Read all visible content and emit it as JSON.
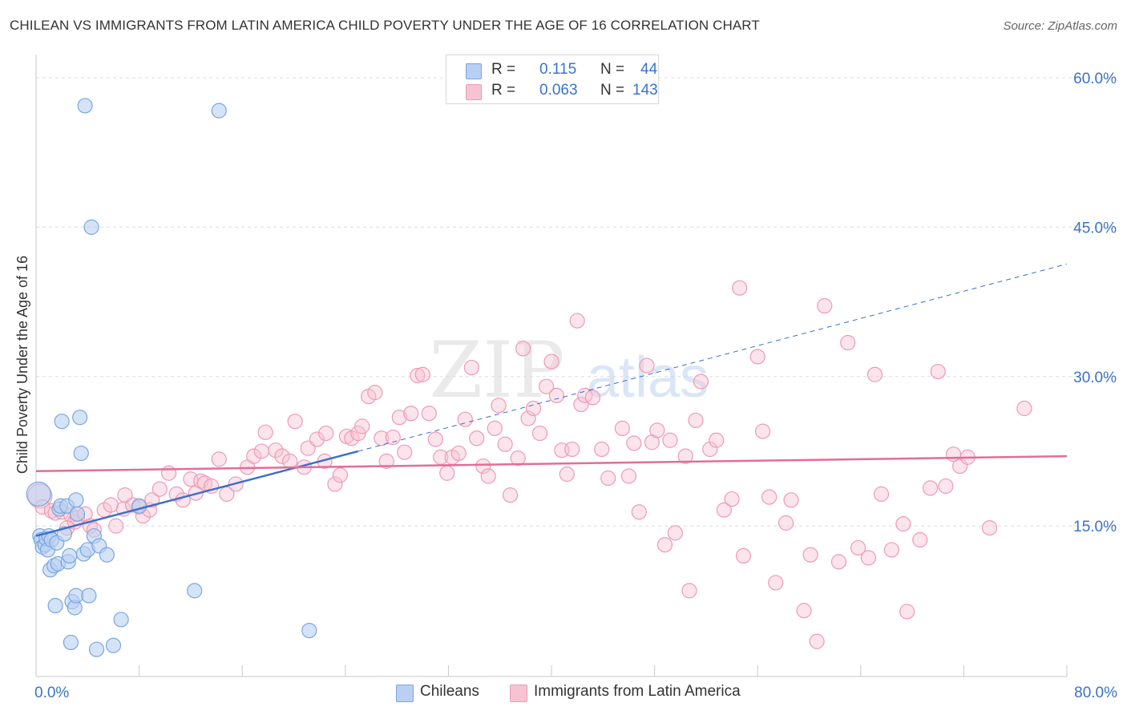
{
  "title": "CHILEAN VS IMMIGRANTS FROM LATIN AMERICA CHILD POVERTY UNDER THE AGE OF 16 CORRELATION CHART",
  "source": "Source: ZipAtlas.com",
  "watermark": {
    "zip": "ZIP",
    "atlas": "atlas"
  },
  "legend": {
    "chileans": {
      "r_label": "R =",
      "r_value": "0.115",
      "n_label": "N =",
      "n_value": "44"
    },
    "immigrants": {
      "r_label": "R =",
      "r_value": "0.063",
      "n_label": "N =",
      "n_value": "143"
    }
  },
  "bottom_legend": {
    "chileans": "Chileans",
    "immigrants": "Immigrants from Latin America"
  },
  "colors": {
    "chileans_fill": "#b9d0f2",
    "chileans_stroke": "#7aa6e0",
    "chileans_line": "#3a6fce",
    "immigrants_fill": "#f7c3d3",
    "immigrants_stroke": "#ee9ab5",
    "immigrants_line": "#e36d95",
    "axis_label": "#3a73c9",
    "grid": "#dcdcdc"
  },
  "chart_data": {
    "type": "scatter",
    "title": "CHILEAN VS IMMIGRANTS FROM LATIN AMERICA CHILD POVERTY UNDER THE AGE OF 16 CORRELATION CHART",
    "xlabel": "",
    "ylabel": "Child Poverty Under the Age of 16",
    "xlim": [
      0,
      80
    ],
    "ylim": [
      0,
      60
    ],
    "x_ticks": [
      0,
      80
    ],
    "x_tick_labels": [
      "0.0%",
      "80.0%"
    ],
    "y_ticks": [
      15,
      30,
      45,
      60
    ],
    "y_tick_labels": [
      "15.0%",
      "30.0%",
      "45.0%",
      "60.0%"
    ],
    "grid": true,
    "legend_position": "top-center",
    "series": [
      {
        "name": "Chileans",
        "points": [
          [
            0.2,
            18.2
          ],
          [
            0.3,
            14.0
          ],
          [
            0.4,
            13.6
          ],
          [
            0.5,
            12.9
          ],
          [
            0.7,
            13.1
          ],
          [
            0.8,
            13.7
          ],
          [
            0.9,
            12.6
          ],
          [
            1.0,
            14.0
          ],
          [
            1.1,
            10.6
          ],
          [
            1.2,
            13.6
          ],
          [
            1.4,
            11.0
          ],
          [
            1.5,
            7.0
          ],
          [
            1.6,
            13.3
          ],
          [
            1.7,
            11.2
          ],
          [
            1.8,
            16.7
          ],
          [
            1.9,
            17.0
          ],
          [
            2.0,
            25.5
          ],
          [
            2.2,
            14.2
          ],
          [
            2.4,
            17.0
          ],
          [
            2.5,
            11.4
          ],
          [
            2.6,
            12.0
          ],
          [
            2.7,
            3.3
          ],
          [
            2.8,
            7.4
          ],
          [
            3.0,
            6.8
          ],
          [
            3.1,
            8.0
          ],
          [
            3.2,
            16.2
          ],
          [
            3.1,
            17.6
          ],
          [
            3.4,
            25.9
          ],
          [
            3.5,
            22.3
          ],
          [
            3.7,
            12.2
          ],
          [
            3.8,
            57.2
          ],
          [
            4.0,
            12.6
          ],
          [
            4.1,
            8.0
          ],
          [
            4.3,
            45.0
          ],
          [
            4.5,
            14.0
          ],
          [
            4.7,
            2.6
          ],
          [
            4.9,
            13.0
          ],
          [
            5.5,
            12.1
          ],
          [
            6.0,
            3.0
          ],
          [
            6.6,
            5.6
          ],
          [
            8.0,
            17.0
          ],
          [
            12.3,
            8.5
          ],
          [
            14.2,
            56.7
          ],
          [
            21.2,
            4.5
          ]
        ],
        "trend": {
          "x": [
            0,
            25
          ],
          "y": [
            14.0,
            22.5
          ],
          "style": "solid"
        },
        "trend_extension": {
          "x": [
            25,
            80
          ],
          "y": [
            22.5,
            41.3
          ],
          "style": "dashed"
        }
      },
      {
        "name": "Immigrants from Latin America",
        "points": [
          [
            0.3,
            18.0
          ],
          [
            0.5,
            16.9
          ],
          [
            1.2,
            16.5
          ],
          [
            1.5,
            16.3
          ],
          [
            2.0,
            16.4
          ],
          [
            2.4,
            14.8
          ],
          [
            2.7,
            16.1
          ],
          [
            3.0,
            15.4
          ],
          [
            3.2,
            15.8
          ],
          [
            3.8,
            16.2
          ],
          [
            4.2,
            15.0
          ],
          [
            4.5,
            14.6
          ],
          [
            5.3,
            16.6
          ],
          [
            5.8,
            17.1
          ],
          [
            6.2,
            15.0
          ],
          [
            6.8,
            16.7
          ],
          [
            7.5,
            17.1
          ],
          [
            8.0,
            16.9
          ],
          [
            8.3,
            16.0
          ],
          [
            8.8,
            16.6
          ],
          [
            9.0,
            17.6
          ],
          [
            9.6,
            18.7
          ],
          [
            10.3,
            20.3
          ],
          [
            10.9,
            18.2
          ],
          [
            11.4,
            17.6
          ],
          [
            12.0,
            19.7
          ],
          [
            12.4,
            18.3
          ],
          [
            12.8,
            19.5
          ],
          [
            13.1,
            19.3
          ],
          [
            13.6,
            19.0
          ],
          [
            14.2,
            21.7
          ],
          [
            14.8,
            18.2
          ],
          [
            15.5,
            19.2
          ],
          [
            16.4,
            20.9
          ],
          [
            16.9,
            22.0
          ],
          [
            17.5,
            22.5
          ],
          [
            17.8,
            24.4
          ],
          [
            18.6,
            22.6
          ],
          [
            19.1,
            22.0
          ],
          [
            19.7,
            21.5
          ],
          [
            20.1,
            25.5
          ],
          [
            20.8,
            20.9
          ],
          [
            21.1,
            22.8
          ],
          [
            21.8,
            23.7
          ],
          [
            22.4,
            21.5
          ],
          [
            22.5,
            24.3
          ],
          [
            23.2,
            19.2
          ],
          [
            23.6,
            20.1
          ],
          [
            24.1,
            24.0
          ],
          [
            24.5,
            23.8
          ],
          [
            25.0,
            24.3
          ],
          [
            25.3,
            25.0
          ],
          [
            25.8,
            28.0
          ],
          [
            26.3,
            28.4
          ],
          [
            26.8,
            23.8
          ],
          [
            27.2,
            21.5
          ],
          [
            27.7,
            23.9
          ],
          [
            28.2,
            25.9
          ],
          [
            28.6,
            22.4
          ],
          [
            29.1,
            26.3
          ],
          [
            29.6,
            30.1
          ],
          [
            30.0,
            30.2
          ],
          [
            30.5,
            26.3
          ],
          [
            31.0,
            23.7
          ],
          [
            31.4,
            21.9
          ],
          [
            31.9,
            20.3
          ],
          [
            32.3,
            21.9
          ],
          [
            32.8,
            22.3
          ],
          [
            33.3,
            25.7
          ],
          [
            33.8,
            30.9
          ],
          [
            34.2,
            23.8
          ],
          [
            34.7,
            21.0
          ],
          [
            35.1,
            20.0
          ],
          [
            35.6,
            24.8
          ],
          [
            35.9,
            27.1
          ],
          [
            36.4,
            23.2
          ],
          [
            36.8,
            18.1
          ],
          [
            37.4,
            21.8
          ],
          [
            37.8,
            32.8
          ],
          [
            38.2,
            25.8
          ],
          [
            38.6,
            26.8
          ],
          [
            39.1,
            24.3
          ],
          [
            39.6,
            29.0
          ],
          [
            40.0,
            31.5
          ],
          [
            40.4,
            28.1
          ],
          [
            40.8,
            22.6
          ],
          [
            41.2,
            20.2
          ],
          [
            41.6,
            22.7
          ],
          [
            42.0,
            35.6
          ],
          [
            42.3,
            27.2
          ],
          [
            42.6,
            28.1
          ],
          [
            43.2,
            27.9
          ],
          [
            43.9,
            22.7
          ],
          [
            44.4,
            19.8
          ],
          [
            45.5,
            24.8
          ],
          [
            46.0,
            20.0
          ],
          [
            46.4,
            23.3
          ],
          [
            46.8,
            16.4
          ],
          [
            47.4,
            31.1
          ],
          [
            47.8,
            23.4
          ],
          [
            48.2,
            24.6
          ],
          [
            48.8,
            13.1
          ],
          [
            49.2,
            23.6
          ],
          [
            49.6,
            14.3
          ],
          [
            50.4,
            22.0
          ],
          [
            50.7,
            8.5
          ],
          [
            51.2,
            25.6
          ],
          [
            51.6,
            29.5
          ],
          [
            52.3,
            22.7
          ],
          [
            52.8,
            23.6
          ],
          [
            53.4,
            16.6
          ],
          [
            54.0,
            17.7
          ],
          [
            54.6,
            38.9
          ],
          [
            54.9,
            12.0
          ],
          [
            56.0,
            32.0
          ],
          [
            56.4,
            24.5
          ],
          [
            56.9,
            17.9
          ],
          [
            57.4,
            9.3
          ],
          [
            58.2,
            15.3
          ],
          [
            58.6,
            17.6
          ],
          [
            59.6,
            6.5
          ],
          [
            60.1,
            12.1
          ],
          [
            60.6,
            3.4
          ],
          [
            61.2,
            37.1
          ],
          [
            62.3,
            11.4
          ],
          [
            63.0,
            33.4
          ],
          [
            63.8,
            12.8
          ],
          [
            64.6,
            11.8
          ],
          [
            65.1,
            30.2
          ],
          [
            65.6,
            18.2
          ],
          [
            66.4,
            12.6
          ],
          [
            67.3,
            15.2
          ],
          [
            67.6,
            6.4
          ],
          [
            68.6,
            13.6
          ],
          [
            69.4,
            18.8
          ],
          [
            70.0,
            30.5
          ],
          [
            70.6,
            19.0
          ],
          [
            71.2,
            22.2
          ],
          [
            71.7,
            21.0
          ],
          [
            72.3,
            21.9
          ],
          [
            74.0,
            14.8
          ],
          [
            76.7,
            26.8
          ],
          [
            6.9,
            18.1
          ]
        ],
        "trend": {
          "x": [
            0,
            80
          ],
          "y": [
            20.5,
            22.0
          ],
          "style": "solid"
        }
      }
    ]
  }
}
